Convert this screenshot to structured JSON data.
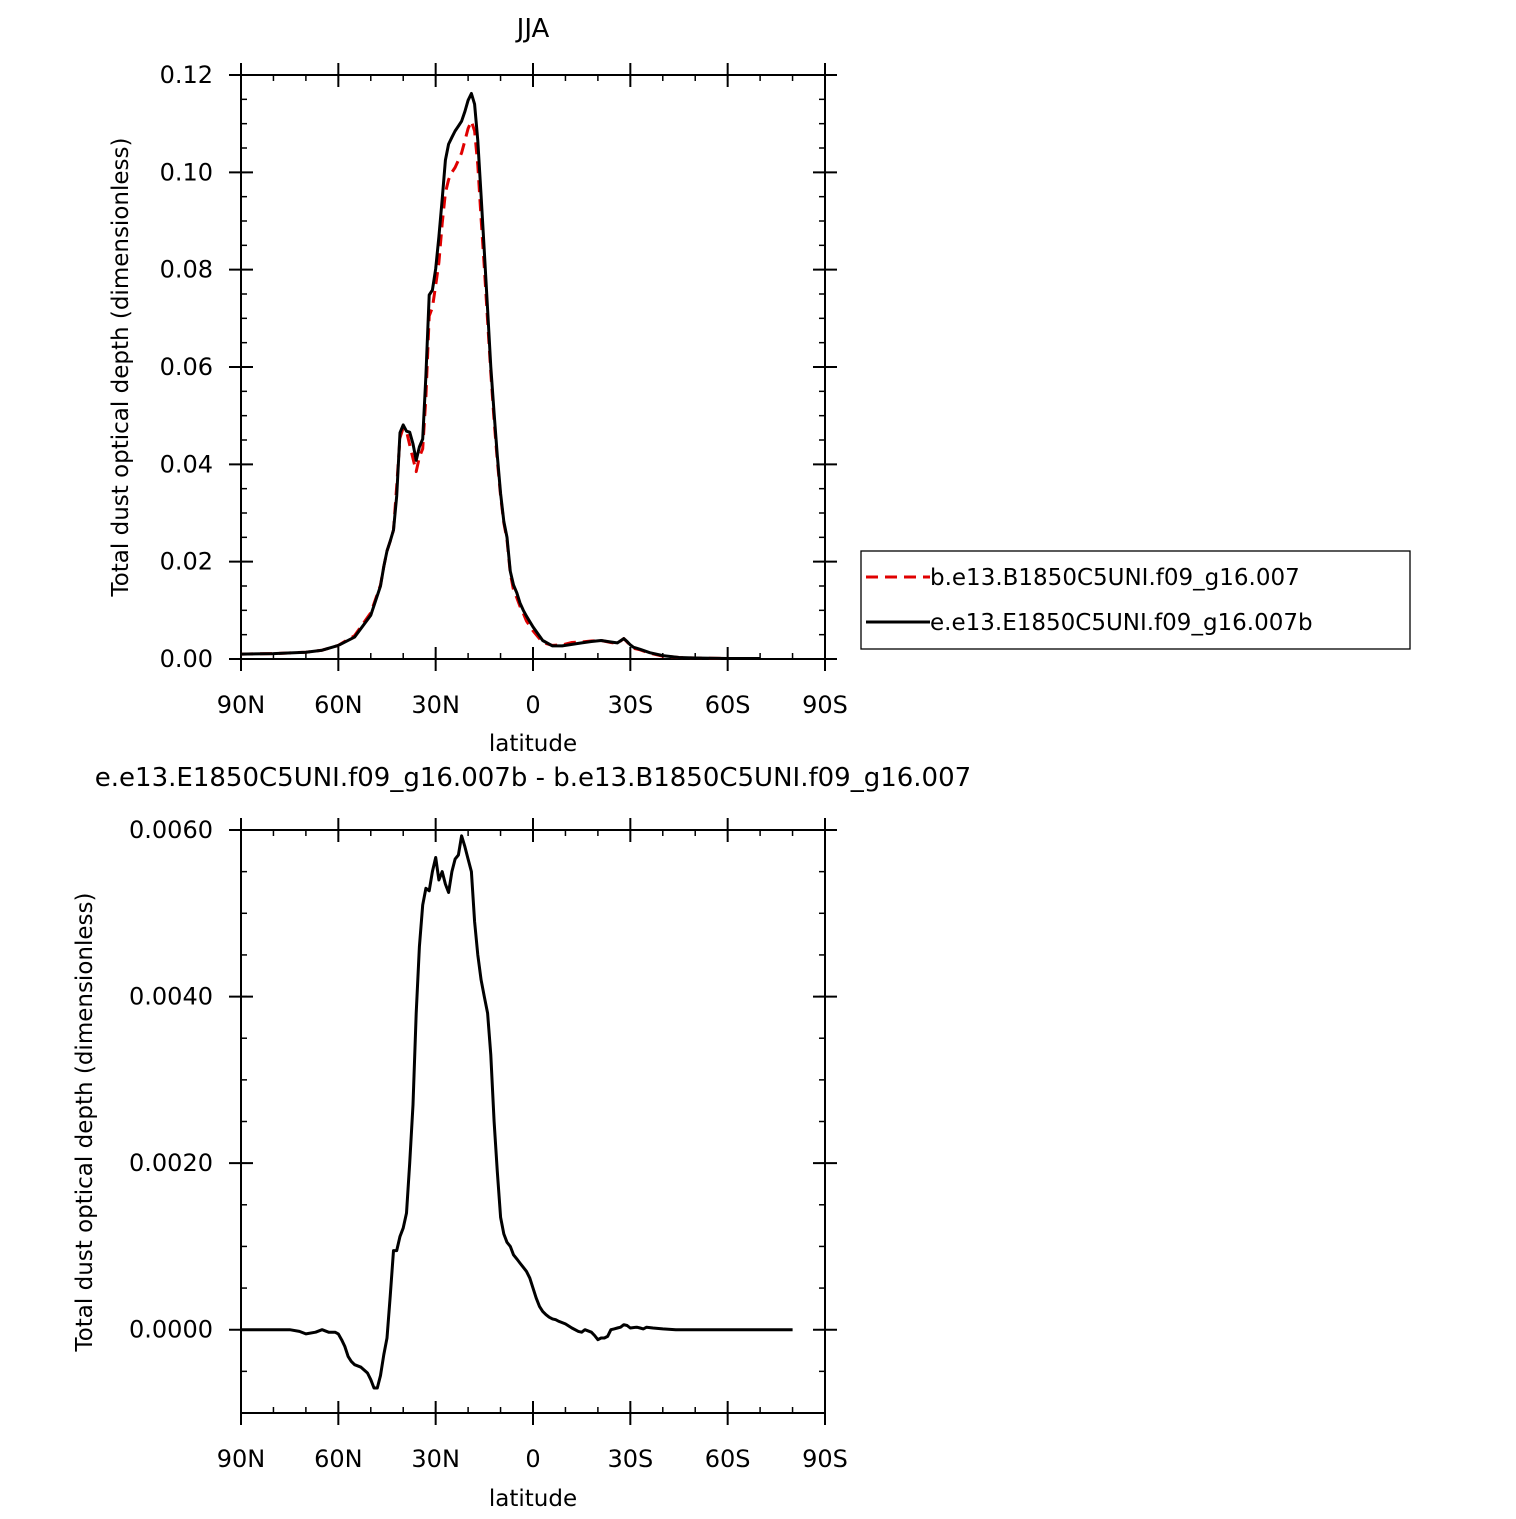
{
  "chart_data": [
    {
      "type": "line",
      "title": "JJA",
      "xlabel": "latitude",
      "ylabel": "Total dust optical depth (dimensionless)",
      "xlim": [
        90,
        -90
      ],
      "ylim": [
        0,
        0.12
      ],
      "xticks": [
        90,
        60,
        30,
        0,
        -30,
        -60,
        -90
      ],
      "xtick_labels": [
        "90N",
        "60N",
        "30N",
        "0",
        "30S",
        "60S",
        "90S"
      ],
      "yticks": [
        0,
        0.02,
        0.04,
        0.06,
        0.08,
        0.1,
        0.12
      ],
      "ytick_labels": [
        "0.00",
        "0.02",
        "0.04",
        "0.06",
        "0.08",
        "0.10",
        "0.12"
      ],
      "legend_position": "right",
      "series": [
        {
          "name": "b.e13.B1850C5UNI.f09_g16.007",
          "color": "#e00000",
          "dash": "dashed",
          "x": [
            90,
            80,
            70,
            65,
            60,
            55,
            50,
            47,
            46,
            45,
            44,
            43,
            42,
            41,
            40,
            39,
            38,
            37,
            36,
            35,
            34,
            33,
            32,
            31,
            30,
            29,
            28,
            27,
            26,
            25,
            24,
            23,
            22,
            21,
            20,
            19,
            18,
            17,
            16,
            15,
            14,
            13,
            12,
            11,
            10,
            9,
            8,
            7,
            6,
            5,
            4,
            3,
            2,
            0,
            -3,
            -6,
            -9,
            -12,
            -15,
            -18,
            -21,
            -24,
            -26,
            -28,
            -29,
            -30,
            -31,
            -33,
            -36,
            -40,
            -45,
            -50,
            -60,
            -70
          ],
          "values": [
            0.001,
            0.0011,
            0.0014,
            0.0018,
            0.0028,
            0.0048,
            0.0095,
            0.0152,
            0.019,
            0.0222,
            0.0242,
            0.0265,
            0.0355,
            0.0455,
            0.0475,
            0.0468,
            0.044,
            0.0412,
            0.0385,
            0.0415,
            0.0432,
            0.0538,
            0.0705,
            0.0722,
            0.0768,
            0.0815,
            0.0895,
            0.0958,
            0.0985,
            0.1,
            0.101,
            0.1025,
            0.104,
            0.1065,
            0.109,
            0.1105,
            0.1085,
            0.1015,
            0.0905,
            0.0805,
            0.0695,
            0.0588,
            0.049,
            0.0408,
            0.0335,
            0.028,
            0.0245,
            0.0176,
            0.0142,
            0.0126,
            0.0108,
            0.0094,
            0.0078,
            0.0058,
            0.0034,
            0.0028,
            0.0029,
            0.0034,
            0.0035,
            0.0037,
            0.0038,
            0.0034,
            0.0032,
            0.0042,
            0.0035,
            0.0028,
            0.0022,
            0.0019,
            0.0012,
            0.0006,
            0.0003,
            0.0002,
            0.0001,
            0.0001
          ]
        },
        {
          "name": "e.e13.E1850C5UNI.f09_g16.007b",
          "color": "#000000",
          "dash": "solid",
          "x": [
            90,
            80,
            70,
            65,
            60,
            55,
            50,
            47,
            46,
            45,
            44,
            43,
            42,
            41,
            40,
            39,
            38,
            37,
            36,
            35,
            34,
            33,
            32,
            31,
            30,
            29,
            28,
            27,
            26,
            25,
            24,
            23,
            22,
            21,
            20,
            19,
            18,
            17,
            16,
            15,
            14,
            13,
            12,
            11,
            10,
            9,
            8,
            7,
            6,
            5,
            4,
            3,
            2,
            0,
            -3,
            -6,
            -9,
            -12,
            -15,
            -18,
            -21,
            -24,
            -26,
            -28,
            -29,
            -30,
            -31,
            -33,
            -36,
            -40,
            -45,
            -50,
            -60,
            -70
          ],
          "values": [
            0.001,
            0.0011,
            0.0014,
            0.0018,
            0.0028,
            0.0045,
            0.009,
            0.015,
            0.019,
            0.0222,
            0.0242,
            0.0265,
            0.0335,
            0.0465,
            0.0481,
            0.0468,
            0.0466,
            0.0442,
            0.0408,
            0.0436,
            0.0452,
            0.0582,
            0.0748,
            0.0758,
            0.0802,
            0.0868,
            0.0945,
            0.1025,
            0.1058,
            0.1072,
            0.1085,
            0.1095,
            0.1105,
            0.1125,
            0.1148,
            0.1162,
            0.114,
            0.1065,
            0.0952,
            0.0838,
            0.0718,
            0.06,
            0.0505,
            0.0418,
            0.034,
            0.0283,
            0.025,
            0.018,
            0.0152,
            0.0136,
            0.0115,
            0.01,
            0.0088,
            0.0066,
            0.0038,
            0.0027,
            0.0027,
            0.003,
            0.0033,
            0.0036,
            0.0038,
            0.0035,
            0.0033,
            0.0042,
            0.0036,
            0.0029,
            0.0024,
            0.002,
            0.0013,
            0.0007,
            0.0003,
            0.0002,
            0.0001,
            0.0001
          ]
        }
      ]
    },
    {
      "type": "line",
      "title": "e.e13.E1850C5UNI.f09_g16.007b - b.e13.B1850C5UNI.f09_g16.007",
      "xlabel": "latitude",
      "ylabel": "Total dust optical depth (dimensionless)",
      "xlim": [
        90,
        -90
      ],
      "ylim": [
        -0.001,
        0.006
      ],
      "xticks": [
        90,
        60,
        30,
        0,
        -30,
        -60,
        -90
      ],
      "xtick_labels": [
        "90N",
        "60N",
        "30N",
        "0",
        "30S",
        "60S",
        "90S"
      ],
      "yticks": [
        0,
        0.002,
        0.004,
        0.006
      ],
      "ytick_labels": [
        "0.0000",
        "0.0020",
        "0.0040",
        "0.0060"
      ],
      "series": [
        {
          "color": "#000000",
          "dash": "solid",
          "x": [
            90,
            85,
            80,
            75,
            72,
            70,
            67,
            65,
            63,
            61,
            60,
            59,
            58,
            57,
            56,
            55,
            53,
            51,
            50,
            49,
            48,
            47,
            46,
            45,
            44,
            43,
            42,
            41,
            40,
            39,
            38,
            37,
            36,
            35,
            34,
            33,
            32,
            31,
            30,
            29,
            28,
            27,
            26,
            25,
            24,
            23,
            22,
            21,
            20,
            19,
            18,
            17,
            16,
            15,
            14,
            13,
            12,
            11,
            10,
            9,
            8,
            7,
            6,
            5,
            4,
            3,
            2,
            1,
            0,
            -1,
            -2,
            -3,
            -4,
            -5,
            -6,
            -7,
            -8,
            -10,
            -12,
            -14,
            -15,
            -16,
            -18,
            -19,
            -20,
            -21,
            -22,
            -23,
            -24,
            -25,
            -26,
            -27,
            -28,
            -29,
            -30,
            -32,
            -33,
            -34,
            -35,
            -37,
            -40,
            -44,
            -46,
            -50,
            -55,
            -60,
            -70,
            -80
          ],
          "values": [
            0,
            0,
            0,
            0,
            -2e-05,
            -5e-05,
            -3e-05,
            0,
            -3e-05,
            -3e-05,
            -5e-05,
            -0.00012,
            -0.0002,
            -0.00032,
            -0.00038,
            -0.00042,
            -0.00045,
            -0.00052,
            -0.0006,
            -0.0007,
            -0.0007,
            -0.00055,
            -0.0003,
            -0.0001,
            0.0004,
            0.00095,
            0.00095,
            0.00112,
            0.00122,
            0.0014,
            0.002,
            0.0027,
            0.0038,
            0.0046,
            0.0051,
            0.0053,
            0.00527,
            0.0055,
            0.00567,
            0.0054,
            0.0055,
            0.00535,
            0.00525,
            0.0055,
            0.00565,
            0.0057,
            0.00593,
            0.0058,
            0.00565,
            0.0055,
            0.0049,
            0.0045,
            0.0042,
            0.004,
            0.0038,
            0.0033,
            0.0025,
            0.0019,
            0.00135,
            0.00115,
            0.00105,
            0.001,
            0.0009,
            0.00085,
            0.0008,
            0.00075,
            0.0007,
            0.00062,
            0.0005,
            0.00038,
            0.00028,
            0.00022,
            0.00018,
            0.00015,
            0.00013,
            0.00012,
            0.0001,
            7e-05,
            2e-05,
            -2e-05,
            -3e-05,
            0,
            -3e-05,
            -7e-05,
            -0.00012,
            -0.0001,
            -0.0001,
            -8e-05,
            0,
            1e-05,
            2e-05,
            3e-05,
            6e-05,
            5e-05,
            2e-05,
            3e-05,
            2e-05,
            1e-05,
            3e-05,
            2e-05,
            1e-05,
            0,
            0,
            0,
            0,
            0,
            0,
            0
          ]
        }
      ]
    }
  ]
}
